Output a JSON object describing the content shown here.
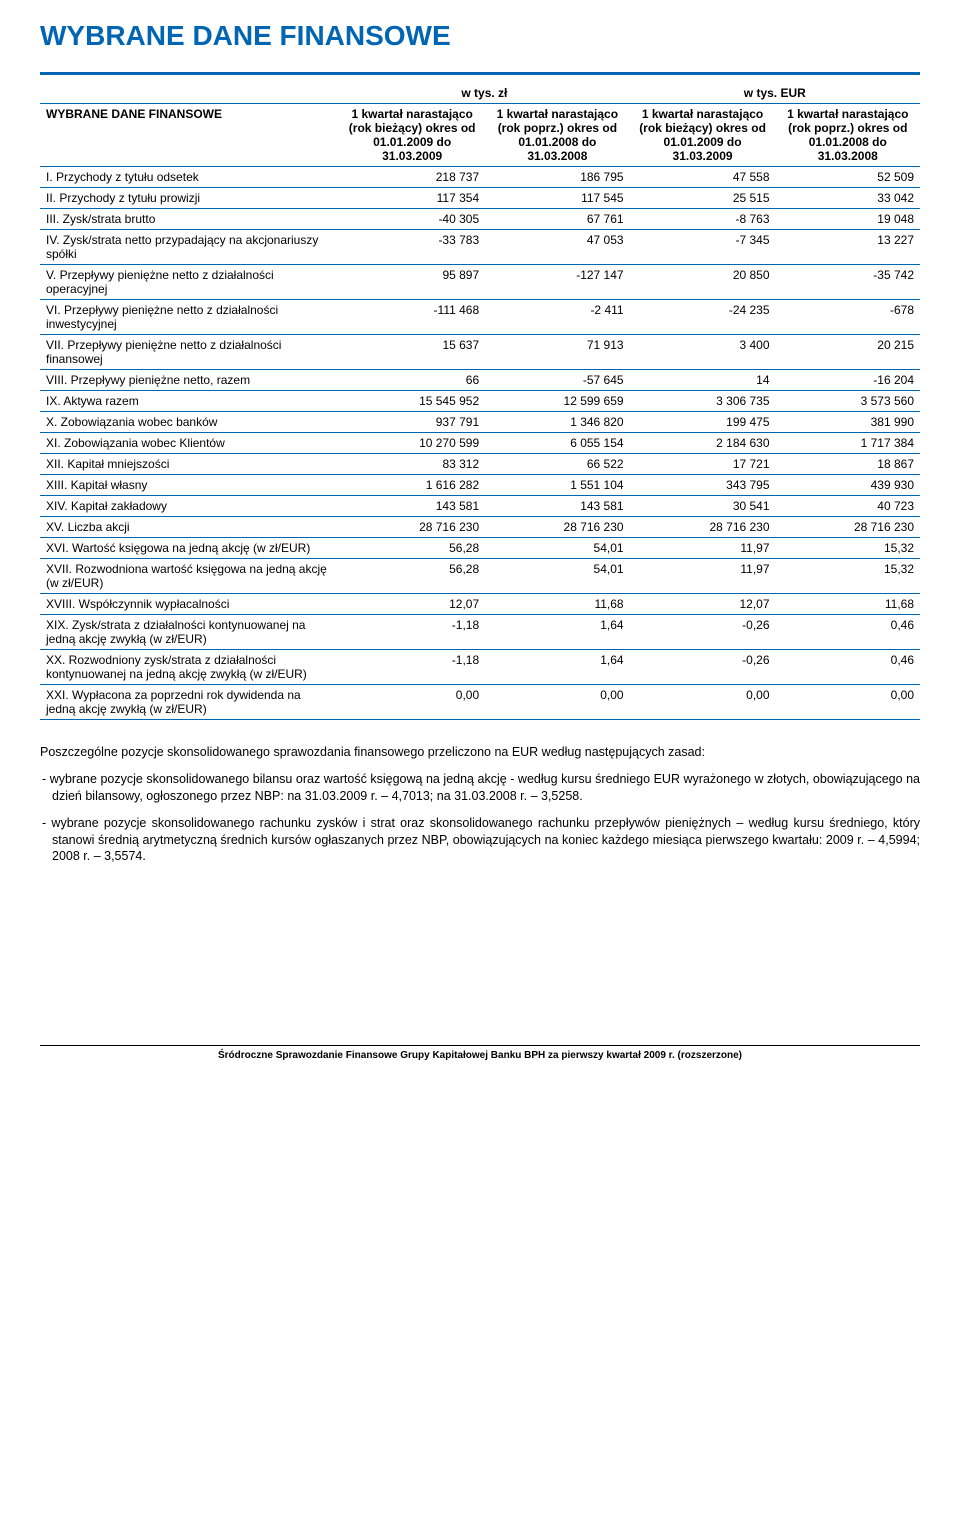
{
  "title": "WYBRANE DANE FINANSOWE",
  "row_header_label": "WYBRANE DANE FINANSOWE",
  "currency_zl": "w tys. zł",
  "currency_eur": "w tys. EUR",
  "columns": [
    "1 kwartał narastająco (rok bieżący) okres od 01.01.2009 do 31.03.2009",
    "1 kwartał narastająco (rok poprz.) okres od 01.01.2008 do 31.03.2008",
    "1 kwartał narastająco (rok bieżący) okres od 01.01.2009 do 31.03.2009",
    "1 kwartał narastająco (rok poprz.) okres od 01.01.2008 do 31.03.2008"
  ],
  "rows": [
    {
      "label": "I. Przychody z tytułu odsetek",
      "v": [
        "218 737",
        "186 795",
        "47 558",
        "52 509"
      ]
    },
    {
      "label": "II. Przychody z tytułu prowizji",
      "v": [
        "117 354",
        "117 545",
        "25 515",
        "33 042"
      ]
    },
    {
      "label": "III. Zysk/strata brutto",
      "v": [
        "-40 305",
        "67 761",
        "-8 763",
        "19 048"
      ]
    },
    {
      "label": "IV. Zysk/strata netto przypadający na akcjonariuszy spółki",
      "v": [
        "-33 783",
        "47 053",
        "-7 345",
        "13 227"
      ]
    },
    {
      "label": "V. Przepływy pieniężne netto z działalności operacyjnej",
      "v": [
        "95 897",
        "-127 147",
        "20 850",
        "-35 742"
      ]
    },
    {
      "label": "VI. Przepływy pieniężne netto z działalności inwestycyjnej",
      "v": [
        "-111 468",
        "-2 411",
        "-24 235",
        "-678"
      ]
    },
    {
      "label": "VII. Przepływy pieniężne netto z działalności finansowej",
      "v": [
        "15 637",
        "71 913",
        "3 400",
        "20 215"
      ]
    },
    {
      "label": "VIII. Przepływy pieniężne netto, razem",
      "v": [
        "66",
        "-57 645",
        "14",
        "-16 204"
      ]
    },
    {
      "label": "IX. Aktywa razem",
      "v": [
        "15 545 952",
        "12 599 659",
        "3 306 735",
        "3 573 560"
      ]
    },
    {
      "label": "X. Zobowiązania wobec banków",
      "v": [
        "937 791",
        "1 346 820",
        "199 475",
        "381 990"
      ]
    },
    {
      "label": "XI. Zobowiązania wobec Klientów",
      "v": [
        "10 270 599",
        "6 055 154",
        "2 184 630",
        "1 717 384"
      ]
    },
    {
      "label": "XII. Kapitał mniejszości",
      "v": [
        "83 312",
        "66 522",
        "17 721",
        "18 867"
      ]
    },
    {
      "label": "XIII. Kapitał własny",
      "v": [
        "1 616 282",
        "1 551 104",
        "343 795",
        "439 930"
      ]
    },
    {
      "label": "XIV. Kapitał zakładowy",
      "v": [
        "143 581",
        "143 581",
        "30 541",
        "40 723"
      ]
    },
    {
      "label": "XV. Liczba akcji",
      "v": [
        "28 716 230",
        "28 716 230",
        "28 716 230",
        "28 716 230"
      ]
    },
    {
      "label": "XVI. Wartość księgowa na jedną akcję (w zł/EUR)",
      "v": [
        "56,28",
        "54,01",
        "11,97",
        "15,32"
      ]
    },
    {
      "label": "XVII. Rozwodniona wartość księgowa na jedną akcję (w zł/EUR)",
      "v": [
        "56,28",
        "54,01",
        "11,97",
        "15,32"
      ]
    },
    {
      "label": "XVIII. Współczynnik wypłacalności",
      "v": [
        "12,07",
        "11,68",
        "12,07",
        "11,68"
      ]
    },
    {
      "label": "XIX. Zysk/strata z działalności kontynuowanej na jedną akcję zwykłą (w zł/EUR)",
      "v": [
        "-1,18",
        "1,64",
        "-0,26",
        "0,46"
      ]
    },
    {
      "label": "XX. Rozwodniony zysk/strata z działalności kontynuowanej na jedną akcję zwykłą (w zł/EUR)",
      "v": [
        "-1,18",
        "1,64",
        "-0,26",
        "0,46"
      ]
    },
    {
      "label": "XXI. Wypłacona za poprzedni rok dywidenda na jedną akcję zwykłą (w zł/EUR)",
      "v": [
        "0,00",
        "0,00",
        "0,00",
        "0,00"
      ]
    }
  ],
  "notes": {
    "p1": "Poszczególne pozycje skonsolidowanego sprawozdania finansowego przeliczono na EUR według następujących zasad:",
    "p2": "- wybrane pozycje skonsolidowanego bilansu oraz wartość księgową na jedną akcję - według kursu średniego EUR wyrażonego w złotych, obowiązującego na dzień bilansowy, ogłoszonego przez NBP: na 31.03.2009 r. – 4,7013; na 31.03.2008 r. – 3,5258.",
    "p3": "- wybrane pozycje skonsolidowanego rachunku zysków i strat oraz skonsolidowanego rachunku przepływów pieniężnych – według kursu średniego, który stanowi średnią arytmetyczną średnich kursów ogłaszanych przez NBP, obowiązujących na koniec każdego miesiąca pierwszego kwartału: 2009 r. – 4,5994; 2008 r. – 3,5574."
  },
  "footer": "Śródroczne Sprawozdanie Finansowe Grupy Kapitałowej Banku BPH za pierwszy kwartał 2009 r. (rozszerzone)",
  "colors": {
    "accent": "#0066b3",
    "text": "#000000",
    "bg": "#ffffff"
  }
}
